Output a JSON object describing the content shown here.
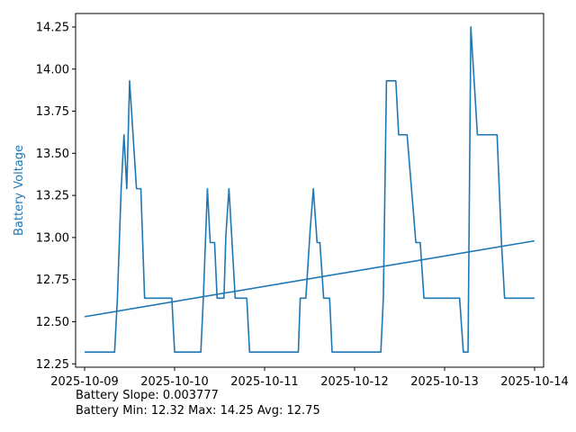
{
  "chart_data": {
    "type": "line",
    "ylabel": "Battery Voltage",
    "xlabel": "",
    "title": "",
    "x_ticks": [
      "2025-10-09",
      "2025-10-10",
      "2025-10-11",
      "2025-10-12",
      "2025-10-13",
      "2025-10-14"
    ],
    "y_ticks": [
      "12.25",
      "12.50",
      "12.75",
      "13.00",
      "13.25",
      "13.50",
      "13.75",
      "14.00",
      "14.25"
    ],
    "xlim": [
      "2025-10-08T21:36",
      "2025-10-14T02:24"
    ],
    "ylim": [
      12.23,
      14.33
    ],
    "grid": false,
    "color": "#1f77b4",
    "series": [
      {
        "kind": "voltage",
        "points": [
          [
            "2025-10-09T00:00",
            12.32
          ],
          [
            "2025-10-09T08:00",
            12.32
          ],
          [
            "2025-10-09T08:45",
            12.64
          ],
          [
            "2025-10-09T09:45",
            13.29
          ],
          [
            "2025-10-09T10:30",
            13.61
          ],
          [
            "2025-10-09T11:15",
            13.29
          ],
          [
            "2025-10-09T12:00",
            13.93
          ],
          [
            "2025-10-09T13:50",
            13.29
          ],
          [
            "2025-10-09T15:00",
            13.29
          ],
          [
            "2025-10-09T16:00",
            12.64
          ],
          [
            "2025-10-09T23:15",
            12.64
          ],
          [
            "2025-10-10T00:00",
            12.32
          ],
          [
            "2025-10-10T07:00",
            12.32
          ],
          [
            "2025-10-10T07:40",
            12.64
          ],
          [
            "2025-10-10T08:45",
            13.29
          ],
          [
            "2025-10-10T09:30",
            12.97
          ],
          [
            "2025-10-10T10:40",
            12.97
          ],
          [
            "2025-10-10T11:20",
            12.64
          ],
          [
            "2025-10-10T13:10",
            12.64
          ],
          [
            "2025-10-10T13:40",
            13.01
          ],
          [
            "2025-10-10T14:30",
            13.29
          ],
          [
            "2025-10-10T16:10",
            12.64
          ],
          [
            "2025-10-10T19:15",
            12.64
          ],
          [
            "2025-10-10T20:00",
            12.32
          ],
          [
            "2025-10-11T09:00",
            12.32
          ],
          [
            "2025-10-11T09:30",
            12.64
          ],
          [
            "2025-10-11T11:00",
            12.64
          ],
          [
            "2025-10-11T12:10",
            13.05
          ],
          [
            "2025-10-11T13:00",
            13.29
          ],
          [
            "2025-10-11T14:00",
            12.97
          ],
          [
            "2025-10-11T14:45",
            12.97
          ],
          [
            "2025-10-11T15:45",
            12.64
          ],
          [
            "2025-10-11T17:20",
            12.64
          ],
          [
            "2025-10-11T18:00",
            12.32
          ],
          [
            "2025-10-12T07:00",
            12.32
          ],
          [
            "2025-10-12T07:40",
            12.64
          ],
          [
            "2025-10-12T08:30",
            13.93
          ],
          [
            "2025-10-12T11:00",
            13.93
          ],
          [
            "2025-10-12T11:45",
            13.61
          ],
          [
            "2025-10-12T14:00",
            13.61
          ],
          [
            "2025-10-12T16:20",
            12.97
          ],
          [
            "2025-10-12T17:30",
            12.97
          ],
          [
            "2025-10-12T18:30",
            12.64
          ],
          [
            "2025-10-13T04:00",
            12.64
          ],
          [
            "2025-10-13T05:00",
            12.32
          ],
          [
            "2025-10-13T06:15",
            12.32
          ],
          [
            "2025-10-13T07:00",
            14.25
          ],
          [
            "2025-10-13T08:45",
            13.61
          ],
          [
            "2025-10-13T14:00",
            13.61
          ],
          [
            "2025-10-13T15:10",
            12.97
          ],
          [
            "2025-10-13T16:00",
            12.64
          ],
          [
            "2025-10-13T23:59",
            12.64
          ]
        ]
      },
      {
        "kind": "trend",
        "points": [
          [
            "2025-10-09T00:00",
            12.53
          ],
          [
            "2025-10-13T23:59",
            12.98
          ]
        ]
      }
    ]
  },
  "footer": {
    "slope": "Battery Slope: 0.003777",
    "stats": "Battery Min: 12.32 Max: 14.25 Avg: 12.75"
  }
}
